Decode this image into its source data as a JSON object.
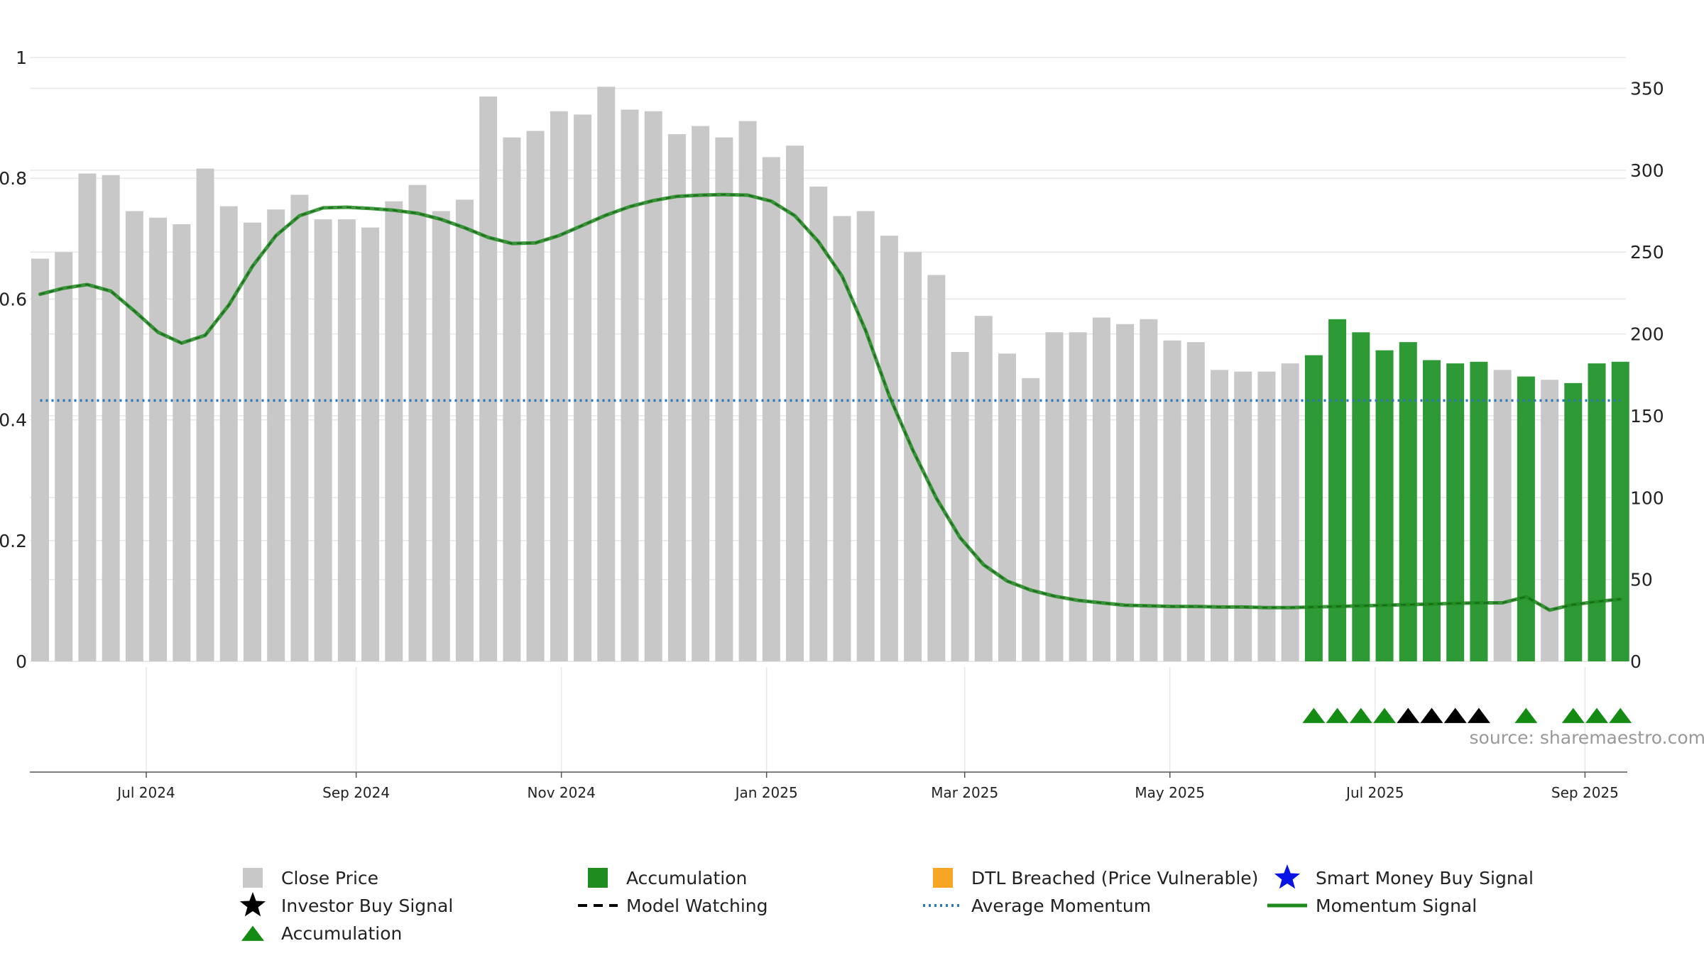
{
  "colors": {
    "price_bar": "#c8c8c8",
    "accumulation_bar": "#2e9a35",
    "momentum_line": "#1e8a1e",
    "average_momentum": "#2f78b4",
    "accumulation_marker": "#148c14",
    "investor_buy_marker": "#000000",
    "dtl_breached": "#f5a623",
    "smart_money": "#0a14e6",
    "grid": "#e8e8e8",
    "source_text": "#999999"
  },
  "source": "source: sharemaestro.com",
  "chart_data": {
    "type": "bar",
    "left_axis": {
      "ticks": [
        "0",
        "0.2",
        "0.4",
        "0.6",
        "0.8",
        "1"
      ],
      "range": [
        0,
        1
      ]
    },
    "right_axis": {
      "ticks": [
        "0",
        "50",
        "100",
        "150",
        "200",
        "250",
        "300",
        "350"
      ],
      "range": [
        0,
        350
      ]
    },
    "x_ticks": [
      {
        "label": "Jul 2024",
        "week": 4.5
      },
      {
        "label": "Sep 2024",
        "week": 13.4
      },
      {
        "label": "Nov 2024",
        "week": 22.1
      },
      {
        "label": "Jan 2025",
        "week": 30.8
      },
      {
        "label": "Mar 2025",
        "week": 39.2
      },
      {
        "label": "May 2025",
        "week": 47.9
      },
      {
        "label": "Jul 2025",
        "week": 56.6
      },
      {
        "label": "Sep 2025",
        "week": 65.5
      }
    ],
    "close_price": [
      246,
      250,
      298,
      297,
      275,
      271,
      267,
      301,
      278,
      268,
      276,
      285,
      270,
      270,
      265,
      281,
      291,
      275,
      282,
      345,
      320,
      324,
      336,
      334,
      351,
      337,
      336,
      322,
      327,
      320,
      330,
      308,
      315,
      290,
      272,
      275,
      260,
      250,
      236,
      189,
      211,
      188,
      173,
      201,
      201,
      210,
      206,
      209,
      196,
      195,
      178,
      177,
      177,
      182,
      187,
      209,
      201,
      190,
      195,
      184,
      182,
      183,
      178,
      174,
      172,
      170,
      182,
      183
    ],
    "accumulation_weeks": [
      54,
      55,
      56,
      57,
      58,
      59,
      60,
      61,
      63,
      65,
      66,
      67
    ],
    "momentum_signal": [
      0.608,
      0.618,
      0.624,
      0.613,
      0.58,
      0.545,
      0.527,
      0.54,
      0.59,
      0.654,
      0.705,
      0.738,
      0.751,
      0.752,
      0.75,
      0.747,
      0.742,
      0.732,
      0.718,
      0.702,
      0.692,
      0.693,
      0.705,
      0.722,
      0.739,
      0.753,
      0.763,
      0.77,
      0.772,
      0.773,
      0.772,
      0.762,
      0.738,
      0.695,
      0.638,
      0.548,
      0.44,
      0.35,
      0.27,
      0.205,
      0.16,
      0.133,
      0.118,
      0.108,
      0.101,
      0.097,
      0.093,
      0.092,
      0.091,
      0.091,
      0.09,
      0.09,
      0.089,
      0.089,
      0.09,
      0.091,
      0.092,
      0.093,
      0.094,
      0.095,
      0.096,
      0.097,
      0.097,
      0.107,
      0.085,
      0.094,
      0.099,
      0.103
    ],
    "average_momentum": 0.432,
    "signals": {
      "accumulation_markers": [
        54,
        55,
        56,
        57,
        63,
        65,
        66,
        67
      ],
      "investor_buy_markers": [
        58,
        59,
        60,
        61
      ]
    },
    "legend": [
      {
        "label": "Close Price",
        "symbol": "square",
        "color": "#c8c8c8"
      },
      {
        "label": "Accumulation",
        "symbol": "square",
        "color": "#1e8c1e"
      },
      {
        "label": "DTL Breached (Price Vulnerable)",
        "symbol": "square",
        "color": "#f5a623"
      },
      {
        "label": "Smart Money Buy Signal",
        "symbol": "star",
        "color": "#0a14e6"
      },
      {
        "label": "Investor Buy Signal",
        "symbol": "star",
        "color": "#000000"
      },
      {
        "label": "Model Watching",
        "symbol": "dashed-line",
        "color": "#000000"
      },
      {
        "label": "Average Momentum",
        "symbol": "dotted-line",
        "color": "#2f78b4"
      },
      {
        "label": "Momentum Signal",
        "symbol": "solid-line",
        "color": "#1e8a1e"
      },
      {
        "label": "Accumulation",
        "symbol": "triangle",
        "color": "#148c14"
      }
    ]
  }
}
